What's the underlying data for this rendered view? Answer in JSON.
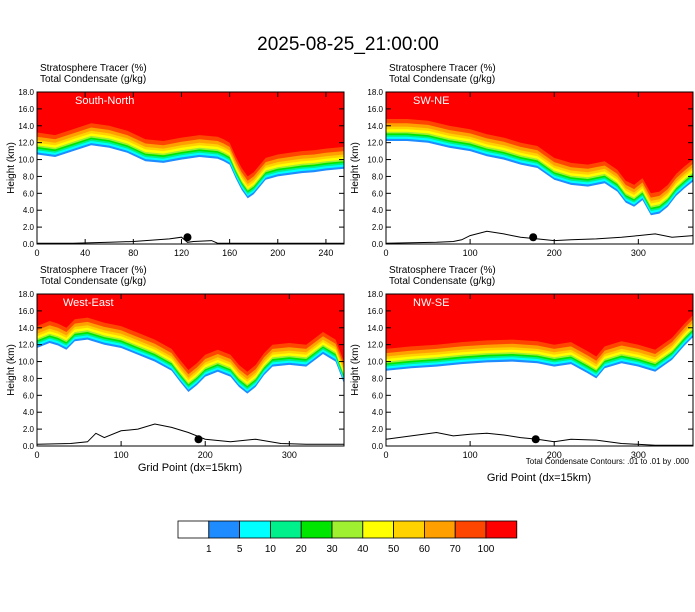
{
  "figure": {
    "title": "2025-08-25_21:00:00",
    "footnote": "Total Condensate Contours: .01 to .01 by .000"
  },
  "palette": {
    "levels": [
      "1",
      "5",
      "10",
      "20",
      "30",
      "40",
      "50",
      "60",
      "70",
      "100"
    ],
    "colors": [
      "#ffffff",
      "#1e8cff",
      "#00ffff",
      "#00f08c",
      "#00e600",
      "#a0f032",
      "#ffff00",
      "#ffd200",
      "#ffa000",
      "#ff4600",
      "#ff0000"
    ]
  },
  "chart_data": [
    {
      "type": "heatmap",
      "name": "South-North",
      "title_line1": "Stratosphere Tracer   (%)",
      "title_line2": "Total Condensate   (g/kg)",
      "panel_label": "South-North",
      "ylabel": "Height (km)",
      "xlabel": "",
      "xlim": [
        0,
        255
      ],
      "ylim": [
        0,
        18
      ],
      "xticks": [
        0,
        40,
        80,
        120,
        160,
        200,
        240
      ],
      "yticks": [
        "0.0",
        "2.0",
        "4.0",
        "6.0",
        "8.0",
        "10.0",
        "12.0",
        "14.0",
        "16.0",
        "18.0"
      ],
      "tracer_boundary_km": [
        [
          0,
          13.2
        ],
        [
          15,
          12.9
        ],
        [
          30,
          13.6
        ],
        [
          45,
          14.3
        ],
        [
          60,
          14.0
        ],
        [
          75,
          13.4
        ],
        [
          90,
          12.4
        ],
        [
          105,
          12.2
        ],
        [
          120,
          12.6
        ],
        [
          135,
          12.9
        ],
        [
          150,
          12.7
        ],
        [
          155,
          12.4
        ],
        [
          160,
          12.0
        ],
        [
          165,
          10.4
        ],
        [
          170,
          9.0
        ],
        [
          175,
          8.0
        ],
        [
          180,
          8.5
        ],
        [
          190,
          10.2
        ],
        [
          200,
          10.6
        ],
        [
          210,
          10.8
        ],
        [
          220,
          11.0
        ],
        [
          230,
          11.1
        ],
        [
          240,
          11.3
        ],
        [
          255,
          11.5
        ]
      ],
      "terrain_km": [
        [
          0,
          0.1
        ],
        [
          30,
          0.1
        ],
        [
          60,
          0.2
        ],
        [
          80,
          0.3
        ],
        [
          100,
          0.5
        ],
        [
          110,
          0.6
        ],
        [
          120,
          0.8
        ],
        [
          125,
          0.2
        ],
        [
          130,
          0.3
        ],
        [
          145,
          0.4
        ],
        [
          150,
          0.1
        ],
        [
          255,
          0.1
        ]
      ],
      "marker_x": 125
    },
    {
      "type": "heatmap",
      "name": "SW-NE",
      "title_line1": "Stratosphere Tracer   (%)",
      "title_line2": "Total Condensate   (g/kg)",
      "panel_label": "SW-NE",
      "ylabel": "Height (km)",
      "xlabel": "",
      "xlim": [
        0,
        365
      ],
      "ylim": [
        0,
        18
      ],
      "xticks": [
        0,
        100,
        200,
        300
      ],
      "yticks": [
        "0.0",
        "2.0",
        "4.0",
        "6.0",
        "8.0",
        "10.0",
        "12.0",
        "14.0",
        "16.0",
        "18.0"
      ],
      "tracer_boundary_km": [
        [
          0,
          14.8
        ],
        [
          25,
          14.8
        ],
        [
          50,
          14.6
        ],
        [
          75,
          14.0
        ],
        [
          100,
          13.6
        ],
        [
          120,
          13.0
        ],
        [
          140,
          12.6
        ],
        [
          160,
          12.0
        ],
        [
          180,
          11.6
        ],
        [
          200,
          10.2
        ],
        [
          220,
          9.6
        ],
        [
          240,
          9.4
        ],
        [
          260,
          9.8
        ],
        [
          275,
          8.8
        ],
        [
          285,
          7.5
        ],
        [
          295,
          7.0
        ],
        [
          305,
          7.8
        ],
        [
          315,
          6.0
        ],
        [
          325,
          6.2
        ],
        [
          335,
          7.0
        ],
        [
          345,
          8.3
        ],
        [
          355,
          9.2
        ],
        [
          365,
          10.0
        ]
      ],
      "terrain_km": [
        [
          0,
          0.1
        ],
        [
          60,
          0.2
        ],
        [
          80,
          0.3
        ],
        [
          90,
          0.5
        ],
        [
          100,
          1.0
        ],
        [
          120,
          1.5
        ],
        [
          140,
          1.2
        ],
        [
          150,
          1.0
        ],
        [
          160,
          0.8
        ],
        [
          180,
          0.6
        ],
        [
          200,
          0.4
        ],
        [
          220,
          0.5
        ],
        [
          250,
          0.6
        ],
        [
          280,
          0.8
        ],
        [
          300,
          1.0
        ],
        [
          320,
          1.2
        ],
        [
          340,
          0.8
        ],
        [
          365,
          1.0
        ]
      ],
      "marker_x": 175
    },
    {
      "type": "heatmap",
      "name": "West-East",
      "title_line1": "Stratosphere Tracer   (%)",
      "title_line2": "Total Condensate   (g/kg)",
      "panel_label": "West-East",
      "ylabel": "Height (km)",
      "xlabel": "Grid Point (dx=15km)",
      "xlim": [
        0,
        365
      ],
      "ylim": [
        0,
        18
      ],
      "xticks": [
        0,
        100,
        200,
        300
      ],
      "yticks": [
        "0.0",
        "2.0",
        "4.0",
        "6.0",
        "8.0",
        "10.0",
        "12.0",
        "14.0",
        "16.0",
        "18.0"
      ],
      "tracer_boundary_km": [
        [
          0,
          14.2
        ],
        [
          15,
          14.8
        ],
        [
          25,
          14.5
        ],
        [
          35,
          14.0
        ],
        [
          45,
          15.0
        ],
        [
          60,
          15.2
        ],
        [
          80,
          14.6
        ],
        [
          100,
          14.2
        ],
        [
          120,
          13.4
        ],
        [
          140,
          12.6
        ],
        [
          160,
          11.5
        ],
        [
          170,
          10.2
        ],
        [
          180,
          9.0
        ],
        [
          190,
          9.8
        ],
        [
          200,
          10.8
        ],
        [
          215,
          11.4
        ],
        [
          230,
          10.8
        ],
        [
          240,
          9.6
        ],
        [
          250,
          8.8
        ],
        [
          260,
          9.6
        ],
        [
          270,
          11.0
        ],
        [
          280,
          12.0
        ],
        [
          300,
          12.2
        ],
        [
          320,
          12.0
        ],
        [
          340,
          13.5
        ],
        [
          355,
          12.6
        ],
        [
          365,
          10.0
        ]
      ],
      "terrain_km": [
        [
          0,
          0.2
        ],
        [
          40,
          0.3
        ],
        [
          60,
          0.5
        ],
        [
          70,
          1.5
        ],
        [
          80,
          1.0
        ],
        [
          100,
          1.8
        ],
        [
          120,
          2.0
        ],
        [
          140,
          2.6
        ],
        [
          160,
          2.2
        ],
        [
          180,
          1.6
        ],
        [
          200,
          0.8
        ],
        [
          230,
          0.5
        ],
        [
          260,
          0.8
        ],
        [
          290,
          0.3
        ],
        [
          320,
          0.2
        ],
        [
          365,
          0.2
        ]
      ],
      "marker_x": 192
    },
    {
      "type": "heatmap",
      "name": "NW-SE",
      "title_line1": "Stratosphere Tracer   (%)",
      "title_line2": "Total Condensate   (g/kg)",
      "panel_label": "NW-SE",
      "ylabel": "Height (km)",
      "xlabel": "Grid Point (dx=15km)",
      "xlim": [
        0,
        365
      ],
      "ylim": [
        0,
        18
      ],
      "xticks": [
        0,
        100,
        200,
        300
      ],
      "yticks": [
        "0.0",
        "2.0",
        "4.0",
        "6.0",
        "8.0",
        "10.0",
        "12.0",
        "14.0",
        "16.0",
        "18.0"
      ],
      "tracer_boundary_km": [
        [
          0,
          11.5
        ],
        [
          30,
          11.8
        ],
        [
          60,
          12.0
        ],
        [
          90,
          12.3
        ],
        [
          120,
          12.5
        ],
        [
          150,
          12.6
        ],
        [
          180,
          12.4
        ],
        [
          200,
          12.0
        ],
        [
          220,
          12.3
        ],
        [
          240,
          11.2
        ],
        [
          250,
          10.6
        ],
        [
          260,
          11.8
        ],
        [
          280,
          12.4
        ],
        [
          300,
          12.0
        ],
        [
          320,
          11.4
        ],
        [
          340,
          12.8
        ],
        [
          355,
          14.5
        ],
        [
          365,
          15.5
        ]
      ],
      "terrain_km": [
        [
          0,
          0.8
        ],
        [
          30,
          1.2
        ],
        [
          60,
          1.6
        ],
        [
          80,
          1.2
        ],
        [
          100,
          1.4
        ],
        [
          120,
          1.5
        ],
        [
          140,
          1.3
        ],
        [
          160,
          1.0
        ],
        [
          180,
          0.8
        ],
        [
          200,
          0.5
        ],
        [
          220,
          0.8
        ],
        [
          250,
          0.7
        ],
        [
          280,
          0.3
        ],
        [
          320,
          0.1
        ],
        [
          365,
          0.1
        ]
      ],
      "marker_x": 178
    }
  ]
}
